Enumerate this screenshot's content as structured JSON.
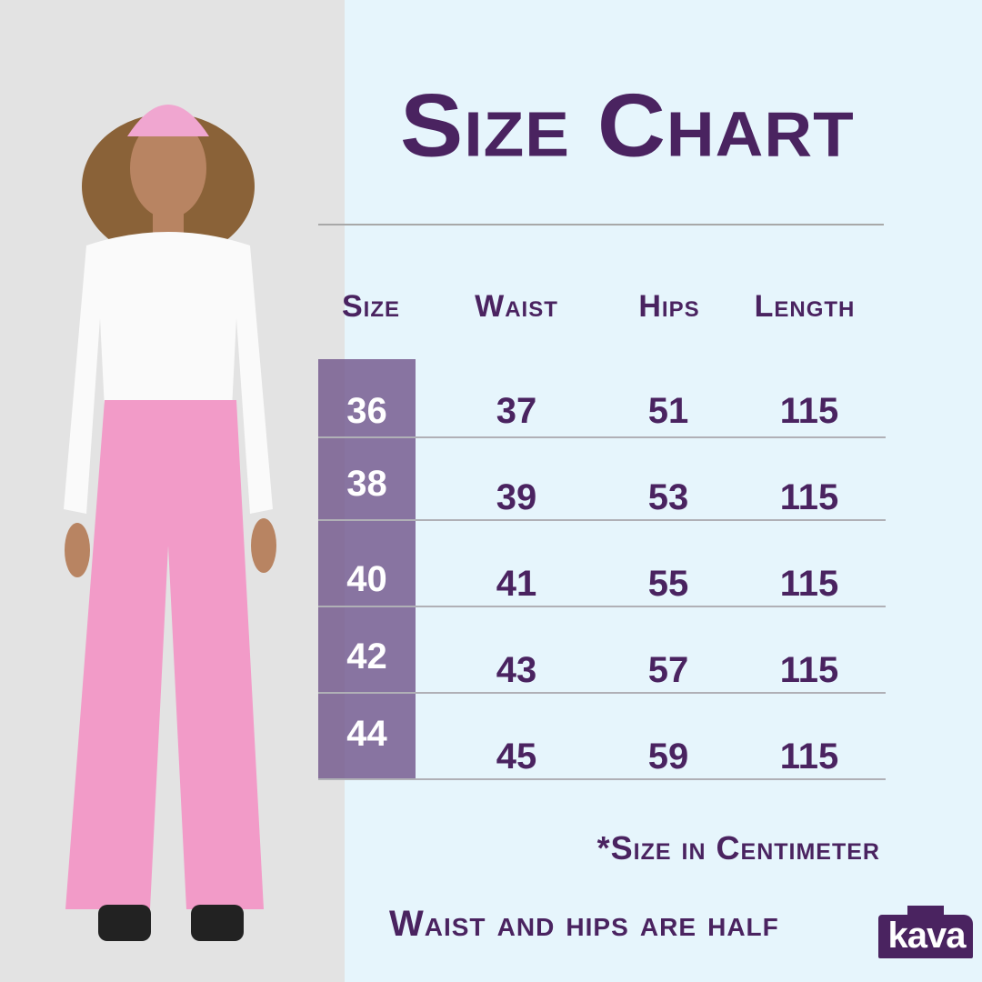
{
  "title": "Size Chart",
  "colors": {
    "accent": "#4a2360",
    "background": "#e6f5fc",
    "size_column": "#7d6a93"
  },
  "table": {
    "headers": [
      "Size",
      "Waist",
      "Hips",
      "Length"
    ],
    "rows": [
      {
        "size": "36",
        "waist": "37",
        "hips": "51",
        "length": "115"
      },
      {
        "size": "38",
        "waist": "39",
        "hips": "53",
        "length": "115"
      },
      {
        "size": "40",
        "waist": "41",
        "hips": "55",
        "length": "115"
      },
      {
        "size": "42",
        "waist": "43",
        "hips": "57",
        "length": "115"
      },
      {
        "size": "44",
        "waist": "45",
        "hips": "59",
        "length": "115"
      }
    ]
  },
  "footnote": "*Size in Centimeter",
  "note": "Waist and hips are half",
  "brand": "kava"
}
